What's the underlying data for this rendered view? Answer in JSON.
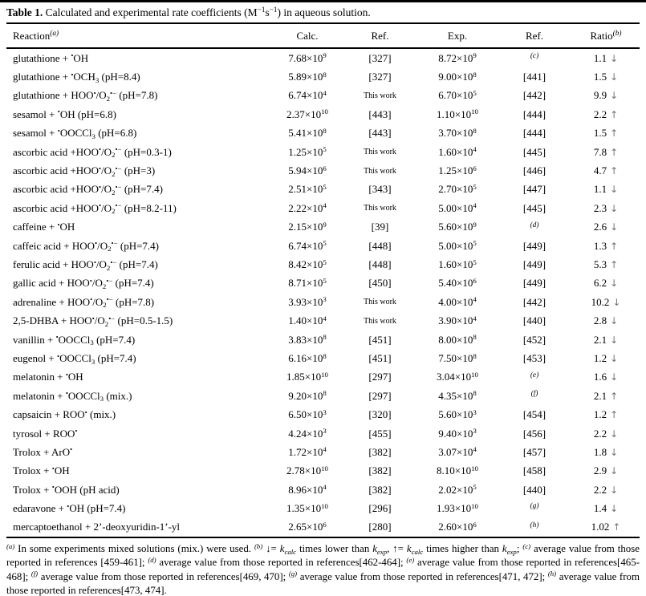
{
  "colors": {
    "text": "#000000",
    "background": "#ffffff",
    "ratio_arrow": "#737373",
    "rule": "#000000"
  },
  "title": {
    "label": "Table 1.",
    "text": " Calculated and experimental rate coefficients (M^{−1}s^{−1}) in aqueous solution."
  },
  "table": {
    "columns": [
      {
        "label": "Reaction^{*{(a)}}"
      },
      {
        "label": "Calc."
      },
      {
        "label": "Ref."
      },
      {
        "label": "Exp."
      },
      {
        "label": "Ref."
      },
      {
        "label": "Ratio^{*{(b)}}"
      }
    ],
    "rows": [
      {
        "reaction": "glutathione + ^{•}OH",
        "calc": "7.68×10^{9}",
        "ref1": "[327]",
        "exp": "8.72×10^{9}",
        "ref2": "^{*{(c)}}",
        "ratio": "1.1",
        "arrow": "↓"
      },
      {
        "reaction": "glutathione + ^{•}OCH_{3} (pH=8.4)",
        "calc": "5.89×10^{8}",
        "ref1": "[327]",
        "exp": "9.00×10^{8}",
        "ref2": "[441]",
        "ratio": "1.5",
        "arrow": "↓"
      },
      {
        "reaction": "glutathione + HOO^{•}/O_{2}^{•−} (pH=7.8)",
        "calc": "6.74×10^{4}",
        "ref1": "This work",
        "exp": "6.70×10^{5}",
        "ref2": "[442]",
        "ratio": "9.9",
        "arrow": "↓"
      },
      {
        "reaction": "sesamol + ^{•}OH (pH=6.8)",
        "calc": "2.37×10^{10}",
        "ref1": "[443]",
        "exp": "1.10×10^{10}",
        "ref2": "[444]",
        "ratio": "2.2",
        "arrow": "↑"
      },
      {
        "reaction": "sesamol + ^{•}OOCCl_{3} (pH=6.8)",
        "calc": "5.41×10^{8}",
        "ref1": "[443]",
        "exp": "3.70×10^{8}",
        "ref2": "[444]",
        "ratio": "1.5",
        "arrow": "↑"
      },
      {
        "reaction": "ascorbic acid +HOO^{•}/O_{2}^{•−} (pH=0.3-1)",
        "calc": "1.25×10^{5}",
        "ref1": "This work",
        "exp": "1.60×10^{4}",
        "ref2": "[445]",
        "ratio": "7.8",
        "arrow": "↑"
      },
      {
        "reaction": "ascorbic acid +HOO^{•}/O_{2}^{•−} (pH=3)",
        "calc": "5.94×10^{6}",
        "ref1": "This work",
        "exp": "1.25×10^{6}",
        "ref2": "[446]",
        "ratio": "4.7",
        "arrow": "↑"
      },
      {
        "reaction": "ascorbic acid +HOO^{•}/O_{2}^{•−} (pH=7.4)",
        "calc": "2.51×10^{5}",
        "ref1": "[343]",
        "exp": "2.70×10^{5}",
        "ref2": "[447]",
        "ratio": "1.1",
        "arrow": "↓"
      },
      {
        "reaction": "ascorbic acid +HOO^{•}/O_{2}^{•−} (pH=8.2-11)",
        "calc": "2.22×10^{4}",
        "ref1": "This work",
        "exp": "5.00×10^{4}",
        "ref2": "[445]",
        "ratio": "2.3",
        "arrow": "↓"
      },
      {
        "reaction": "caffeine + ^{•}OH",
        "calc": "2.15×10^{9}",
        "ref1": "[39]",
        "exp": "5.60×10^{9}",
        "ref2": "^{*{(d)}}",
        "ratio": "2.6",
        "arrow": "↓"
      },
      {
        "reaction": "caffeic acid + HOO^{•}/O_{2}^{•−} (pH=7.4)",
        "calc": "6.74×10^{5}",
        "ref1": "[448]",
        "exp": "5.00×10^{5}",
        "ref2": "[449]",
        "ratio": "1.3",
        "arrow": "↑"
      },
      {
        "reaction": "ferulic acid + HOO^{•}/O_{2}^{•−} (pH=7.4)",
        "calc": "8.42×10^{5}",
        "ref1": "[448]",
        "exp": "1.60×10^{5}",
        "ref2": "[449]",
        "ratio": "5.3",
        "arrow": "↑"
      },
      {
        "reaction": "gallic acid + HOO^{•}/O_{2}^{•−} (pH=7.4)",
        "calc": "8.71×10^{5}",
        "ref1": "[450]",
        "exp": "5.40×10^{6}",
        "ref2": "[449]",
        "ratio": "6.2",
        "arrow": "↓"
      },
      {
        "reaction": "adrenaline + HOO^{•}/O_{2}^{•−} (pH=7.8)",
        "calc": "3.93×10^{3}",
        "ref1": "This work",
        "exp": "4.00×10^{4}",
        "ref2": "[442]",
        "ratio": "10.2",
        "arrow": "↓"
      },
      {
        "reaction": "2,5-DHBA + HOO^{•}/O_{2}^{•−} (pH=0.5-1.5)",
        "calc": "1.40×10^{4}",
        "ref1": "This work",
        "exp": "3.90×10^{4}",
        "ref2": "[440]",
        "ratio": "2.8",
        "arrow": "↓"
      },
      {
        "reaction": "vanillin + ^{•}OOCCl_{3} (pH=7.4)",
        "calc": "3.83×10^{8}",
        "ref1": "[451]",
        "exp": "8.00×10^{8}",
        "ref2": "[452]",
        "ratio": "2.1",
        "arrow": "↓"
      },
      {
        "reaction": "eugenol + ^{•}OOCCl_{3} (pH=7.4)",
        "calc": "6.16×10^{8}",
        "ref1": "[451]",
        "exp": "7.50×10^{8}",
        "ref2": "[453]",
        "ratio": "1.2",
        "arrow": "↓"
      },
      {
        "reaction": "melatonin + ^{•}OH",
        "calc": "1.85×10^{10}",
        "ref1": "[297]",
        "exp": "3.04×10^{10}",
        "ref2": "^{*{(e)}}",
        "ratio": "1.6",
        "arrow": "↓"
      },
      {
        "reaction": "melatonin + ^{•}OOCCl_{3} (mix.)",
        "calc": "9.20×10^{8}",
        "ref1": "[297]",
        "exp": "4.35×10^{8}",
        "ref2": "^{*{(f)}}",
        "ratio": "2.1",
        "arrow": "↑"
      },
      {
        "reaction": "capsaicin + ROO^{•} (mix.)",
        "calc": "6.50×10^{3}",
        "ref1": "[320]",
        "exp": "5.60×10^{3}",
        "ref2": "[454]",
        "ratio": "1.2",
        "arrow": "↑"
      },
      {
        "reaction": "tyrosol + ROO^{•}",
        "calc": "4.24×10^{3}",
        "ref1": "[455]",
        "exp": "9.40×10^{3}",
        "ref2": "[456]",
        "ratio": "2.2",
        "arrow": "↓"
      },
      {
        "reaction": "Trolox + ArO^{•}",
        "calc": "1.72×10^{4}",
        "ref1": "[382]",
        "exp": "3.07×10^{4}",
        "ref2": "[457]",
        "ratio": "1.8",
        "arrow": "↓"
      },
      {
        "reaction": "Trolox + ^{•}OH",
        "calc": "2.78×10^{10}",
        "ref1": "[382]",
        "exp": "8.10×10^{10}",
        "ref2": "[458]",
        "ratio": "2.9",
        "arrow": "↓"
      },
      {
        "reaction": "Trolox + ^{•}OOH (pH acid)",
        "calc": "8.96×10^{4}",
        "ref1": "[382]",
        "exp": "2.02×10^{5}",
        "ref2": "[440]",
        "ratio": "2.2",
        "arrow": "↓"
      },
      {
        "reaction": "edaravone + ^{•}OH (pH=7.4)",
        "calc": "1.35×10^{10}",
        "ref1": "[296]",
        "exp": "1.93×10^{10}",
        "ref2": "^{*{(g)}}",
        "ratio": "1.4",
        "arrow": "↓"
      },
      {
        "reaction": "mercaptoethanol + 2’-deoxyuridin-1’-yl",
        "calc": "2.65×10^{6}",
        "ref1": "[280]",
        "exp": "2.60×10^{6}",
        "ref2": "^{*{(h)}}",
        "ratio": "1.02",
        "arrow": "↑"
      }
    ]
  },
  "footnote": "^{*{(a)}} In some experiments mixed solutions (mix.) were used. ^{*{(b)}} ↓= *{k}_{*{calc}} times lower than *{k}_{*{exp}}, ↑= *{k}_{*{calc}} times higher than *{k}_{*{exp}}; ^{*{(c)}} average value from those reported in references [459-461]; ^{*{(d)}} average value from those reported in references[462-464]; ^{*{(e)}} average value from those reported in references[465-468]; ^{*{(f)}} average value from those reported in references[469, 470]; ^{*{(g)}} average value from those reported in references[471, 472]; ^{*{(h)}} average value from those reported in references[473, 474]."
}
